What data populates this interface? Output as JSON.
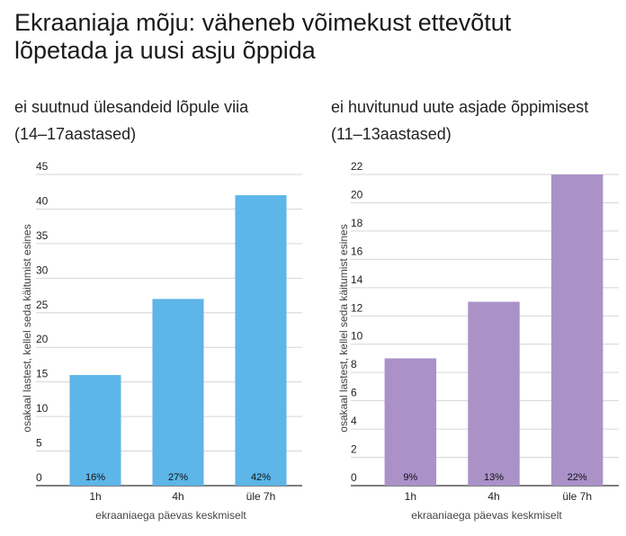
{
  "title": "Ekraaniaja mõju: väheneb võimekust ettevõtut lõpetada ja uusi asju õppida",
  "chart_data": [
    {
      "type": "bar",
      "title": "ei suutnud ülesandeid lõpule viia",
      "subtitle": "(14–17aastased)",
      "categories": [
        "1h",
        "4h",
        "üle 7h"
      ],
      "values": [
        16,
        27,
        42
      ],
      "data_labels": [
        "16%",
        "27%",
        "42%"
      ],
      "xlabel": "ekraaniaega päevas keskmiselt",
      "ylabel": "osakaal lastest, kellel seda käitumist esines",
      "ylim": [
        0,
        45
      ],
      "yticks": [
        0,
        5,
        10,
        15,
        20,
        25,
        30,
        35,
        40,
        45
      ],
      "color": "#5DB5E8",
      "grid": true
    },
    {
      "type": "bar",
      "title": "ei huvitunud uute asjade õppimisest",
      "subtitle": "(11–13aastased)",
      "categories": [
        "1h",
        "4h",
        "üle 7h"
      ],
      "values": [
        9,
        13,
        22
      ],
      "data_labels": [
        "9%",
        "13%",
        "22%"
      ],
      "xlabel": "ekraaniaega päevas keskmiselt",
      "ylabel": "osakaal lastest, kellel seda käitumist esines",
      "ylim": [
        0,
        22
      ],
      "yticks": [
        0,
        2,
        4,
        6,
        8,
        10,
        12,
        14,
        16,
        18,
        20,
        22
      ],
      "color": "#AA92C9",
      "grid": true
    }
  ]
}
